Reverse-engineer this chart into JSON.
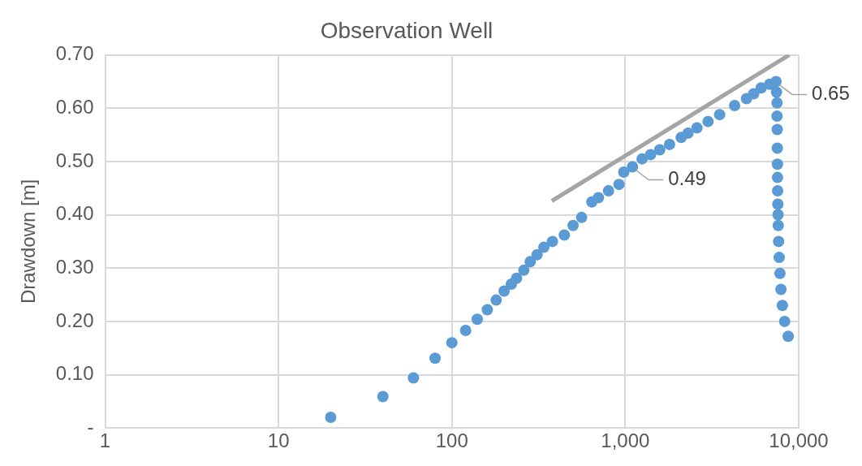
{
  "chart_data": {
    "type": "scatter",
    "title": "Observation Well",
    "ylabel": "Drawdown [m]",
    "log": "x",
    "grid": true,
    "legend": false,
    "marker": "circle",
    "xlim": [
      1,
      10000
    ],
    "xticks": [
      1,
      10,
      100,
      {
        "value": 1000,
        "label": "1,000"
      },
      {
        "value": 10000,
        "label": "10,000"
      }
    ],
    "ylim": [
      0,
      0.7
    ],
    "yticks": [
      {
        "value": 0,
        "label": "-"
      },
      {
        "value": 0.1,
        "label": "0.10"
      },
      {
        "value": 0.2,
        "label": "0.20"
      },
      {
        "value": 0.3,
        "label": "0.30"
      },
      {
        "value": 0.4,
        "label": "0.40"
      },
      {
        "value": 0.5,
        "label": "0.50"
      },
      {
        "value": 0.6,
        "label": "0.60"
      },
      {
        "value": 0.7,
        "label": "0.70"
      }
    ],
    "series": [
      {
        "type": "line",
        "color": "#a5a5a5",
        "marker": "none",
        "line_style": "solid",
        "x": [
          377,
          8830
        ],
        "values": [
          0.426,
          0.7
        ]
      },
      {
        "type": "scatter",
        "color": "#5b9bd5",
        "x": [
          20,
          40,
          60,
          80,
          100,
          120,
          140,
          160,
          180,
          200,
          220,
          236,
          260,
          283,
          310,
          339,
          380,
          445,
          500,
          560,
          641,
          700,
          800,
          920,
          980,
          1100,
          1250,
          1400,
          1580,
          1800,
          2100,
          2300,
          2590,
          3000,
          3500,
          4270,
          5000,
          5500,
          6080,
          6800,
          7400,
          7450,
          7500,
          7500,
          7520,
          7530,
          7540,
          7550,
          7560,
          7580,
          7600,
          7620,
          7660,
          7720,
          7800,
          7900,
          8050,
          8300,
          8550,
          8700
        ],
        "values": [
          0.02,
          0.059,
          0.094,
          0.131,
          0.16,
          0.183,
          0.204,
          0.222,
          0.24,
          0.257,
          0.27,
          0.281,
          0.296,
          0.312,
          0.325,
          0.339,
          0.35,
          0.362,
          0.38,
          0.395,
          0.424,
          0.432,
          0.445,
          0.457,
          0.48,
          0.49,
          0.505,
          0.513,
          0.522,
          0.532,
          0.545,
          0.553,
          0.563,
          0.575,
          0.588,
          0.605,
          0.618,
          0.627,
          0.638,
          0.645,
          0.65,
          0.63,
          0.61,
          0.585,
          0.56,
          0.525,
          0.495,
          0.47,
          0.445,
          0.42,
          0.4,
          0.38,
          0.35,
          0.32,
          0.29,
          0.26,
          0.23,
          0.2,
          null,
          0.172
        ]
      }
    ],
    "annotations": [
      {
        "text": "0.49",
        "x": 1100,
        "y": 0.49
      },
      {
        "text": "0.65",
        "x": 7400,
        "y": 0.65
      }
    ]
  }
}
